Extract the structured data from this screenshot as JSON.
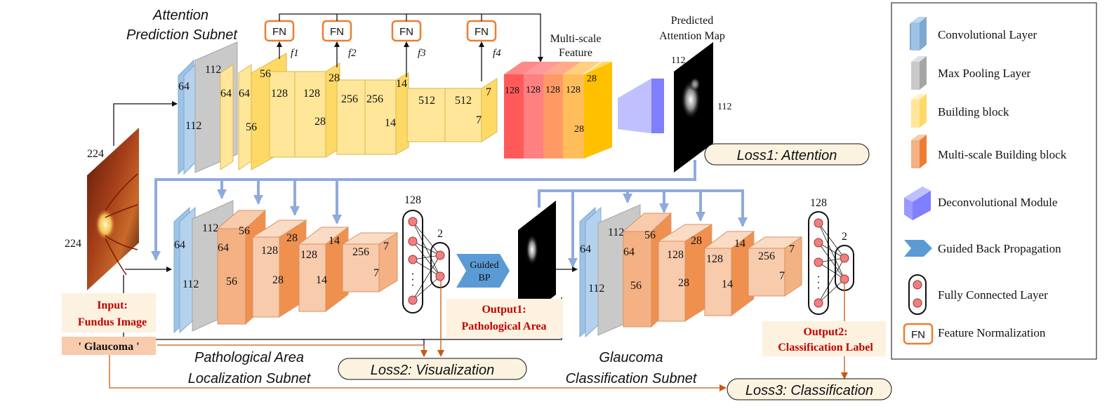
{
  "titles": {
    "attention_line1": "Attention",
    "attention_line2": "Prediction Subnet",
    "localization_line1": "Pathological Area",
    "localization_line2": "Localization Subnet",
    "classification_line1": "Glaucoma",
    "classification_line2": "Classification Subnet"
  },
  "fn_label": "FN",
  "features": [
    "f1",
    "f2",
    "f3",
    "f4"
  ],
  "multiscale_line1": "Multi-scale",
  "multiscale_line2": "Feature",
  "predicted_line1": "Predicted",
  "predicted_line2": "Attention Map",
  "losses": {
    "loss1": "Loss1: Attention",
    "loss2": "Loss2: Visualization",
    "loss3": "Loss3: Classification"
  },
  "input": {
    "line1": "Input:",
    "line2": "Fundus Image",
    "width": "224",
    "height": "224",
    "label": "' Glaucoma '"
  },
  "output1": {
    "line1": "Output1:",
    "line2": "Pathological Area"
  },
  "output2": {
    "line1": "Output2:",
    "line2": "Classification Label"
  },
  "guided_bp": {
    "line1": "Guided",
    "line2": "BP"
  },
  "attention_dims": {
    "conv": [
      "64",
      "112",
      "112"
    ],
    "blocks": [
      "64",
      "64",
      "56",
      "56",
      "128",
      "128",
      "28",
      "28",
      "256",
      "256",
      "14",
      "14",
      "512",
      "512",
      "7",
      "7"
    ],
    "multiscale": [
      "128",
      "128",
      "128",
      "128",
      "28",
      "28"
    ],
    "map": [
      "112",
      "112"
    ]
  },
  "localization_dims": [
    "64",
    "112",
    "112",
    "64",
    "56",
    "56",
    "128",
    "28",
    "28",
    "128",
    "14",
    "14",
    "256",
    "7",
    "7"
  ],
  "classification_dims": [
    "64",
    "112",
    "112",
    "64",
    "56",
    "56",
    "128",
    "28",
    "28",
    "128",
    "14",
    "14",
    "256",
    "7",
    "7"
  ],
  "fc": {
    "in": "128",
    "out": "2",
    "dots": "·"
  },
  "legend": [
    {
      "label": "Convolutional Layer",
      "icon": "conv-layer-icon"
    },
    {
      "label": "Max Pooling Layer",
      "icon": "max-pooling-icon"
    },
    {
      "label": "Building block",
      "icon": "building-block-icon"
    },
    {
      "label": "Multi-scale Building block",
      "icon": "multiscale-block-icon"
    },
    {
      "label": "Deconvolutional Module",
      "icon": "deconv-module-icon"
    },
    {
      "label": "Guided Back Propagation",
      "icon": "guided-bp-icon"
    },
    {
      "label": "Fully Connected Layer",
      "icon": "fully-connected-icon"
    },
    {
      "label": "Feature Normalization",
      "icon": "feature-norm-icon"
    }
  ],
  "colors": {
    "conv": "#9dc3e6",
    "pool": "#c9c9c9",
    "block": "#ffe699",
    "mblock": "#f4b183",
    "deconv": "#9999ff",
    "guided": "#5b9bd5",
    "arrow_blue": "#8faadc",
    "arrow_orange": "#c55a11",
    "fn_border": "#ed7d31",
    "loss_fill": "#fbf3e0",
    "label_fill": "#fdf2df",
    "glaucoma_fill": "#f8cbad",
    "node_fill": "#f08080"
  }
}
